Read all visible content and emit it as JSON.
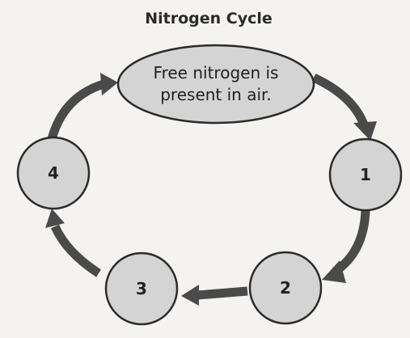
{
  "title": "Nitrogen Cycle",
  "start_node": {
    "line1": "Free nitrogen is",
    "line2": "present in air."
  },
  "steps": [
    {
      "label": "1"
    },
    {
      "label": "2"
    },
    {
      "label": "3"
    },
    {
      "label": "4"
    }
  ],
  "colors": {
    "background": "#f4f3ef",
    "node_fill": "#d4d4d4",
    "node_stroke": "#2b2b2b",
    "arrow": "#4a4a4a",
    "text": "#222222"
  }
}
